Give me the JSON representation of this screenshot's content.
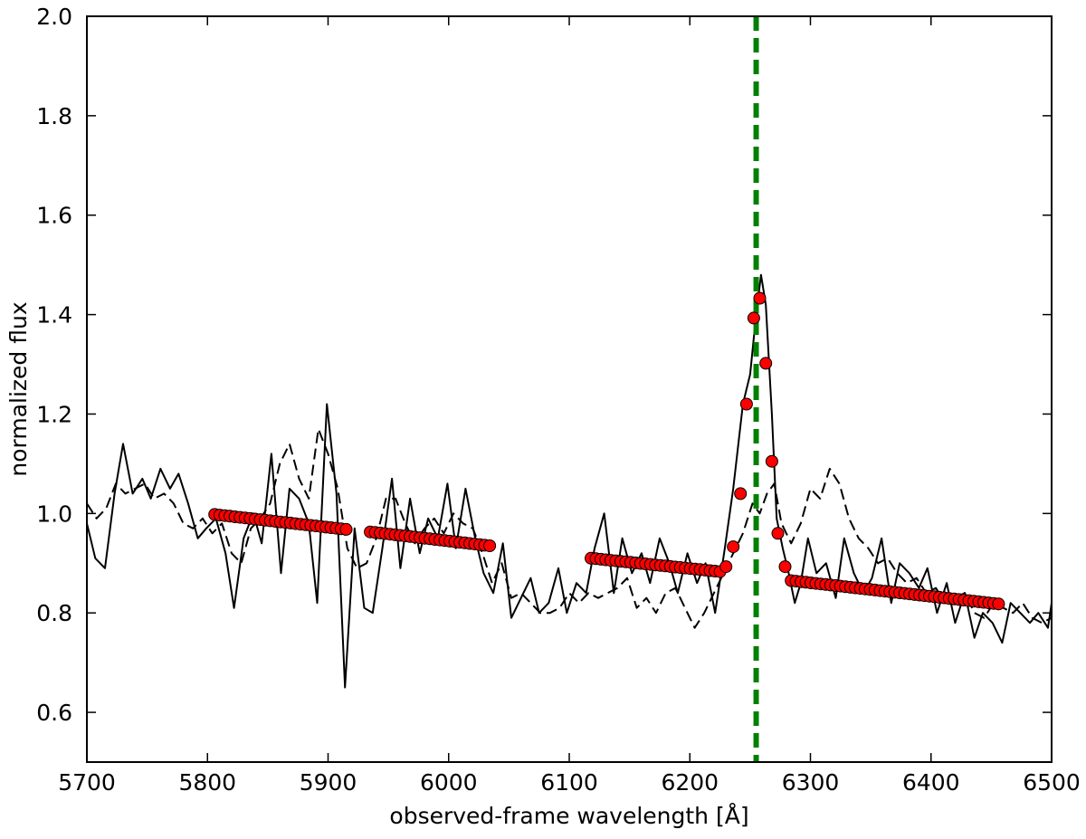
{
  "chart_data": {
    "type": "line",
    "title": "",
    "xlabel": "observed-frame wavelength [Å]",
    "ylabel": "normalized flux",
    "xlim": [
      5700,
      6500
    ],
    "ylim": [
      0.5,
      2.0
    ],
    "x_ticks": [
      5700,
      5800,
      5900,
      6000,
      6100,
      6200,
      6300,
      6400,
      6500
    ],
    "y_ticks": [
      0.6,
      0.8,
      1.0,
      1.2,
      1.4,
      1.6,
      1.8,
      2.0
    ],
    "grid": false,
    "legend": "none",
    "vertical_line": {
      "x": 6255,
      "color": "#008000",
      "style": "dashed"
    },
    "series": [
      {
        "style": "solid",
        "color": "#000000",
        "x": [
          5700,
          5707,
          5715,
          5723,
          5730,
          5738,
          5746,
          5753,
          5761,
          5769,
          5776,
          5784,
          5792,
          5799,
          5807,
          5815,
          5822,
          5830,
          5838,
          5845,
          5853,
          5861,
          5868,
          5876,
          5884,
          5891,
          5899,
          5907,
          5914,
          5922,
          5930,
          5937,
          5945,
          5953,
          5960,
          5968,
          5976,
          5983,
          5991,
          5999,
          6006,
          6014,
          6022,
          6029,
          6037,
          6045,
          6052,
          6060,
          6068,
          6075,
          6083,
          6091,
          6098,
          6106,
          6114,
          6121,
          6129,
          6137,
          6144,
          6152,
          6160,
          6167,
          6175,
          6183,
          6190,
          6198,
          6206,
          6213,
          6221,
          6229,
          6236,
          6244,
          6250,
          6255,
          6259,
          6263,
          6268,
          6272,
          6277,
          6282,
          6287,
          6292,
          6298,
          6305,
          6313,
          6321,
          6328,
          6336,
          6344,
          6351,
          6359,
          6367,
          6374,
          6382,
          6390,
          6397,
          6405,
          6413,
          6420,
          6428,
          6436,
          6443,
          6451,
          6459,
          6466,
          6474,
          6482,
          6489,
          6497,
          6500
        ],
        "y": [
          0.98,
          0.91,
          0.89,
          1.04,
          1.14,
          1.04,
          1.07,
          1.03,
          1.09,
          1.05,
          1.08,
          1.02,
          0.95,
          0.97,
          0.99,
          0.92,
          0.81,
          0.95,
          1.0,
          0.94,
          1.12,
          0.88,
          1.05,
          1.03,
          0.98,
          0.82,
          1.22,
          1.04,
          0.65,
          0.97,
          0.81,
          0.8,
          0.93,
          1.07,
          0.89,
          1.03,
          0.92,
          0.99,
          0.95,
          1.06,
          0.93,
          1.05,
          0.95,
          0.88,
          0.84,
          0.94,
          0.79,
          0.83,
          0.87,
          0.8,
          0.82,
          0.89,
          0.8,
          0.86,
          0.84,
          0.93,
          1.0,
          0.84,
          0.95,
          0.88,
          0.92,
          0.86,
          0.95,
          0.9,
          0.84,
          0.92,
          0.86,
          0.9,
          0.8,
          0.93,
          1.05,
          1.22,
          1.28,
          1.4,
          1.48,
          1.42,
          1.2,
          0.99,
          0.93,
          0.88,
          0.82,
          0.86,
          0.95,
          0.88,
          0.9,
          0.83,
          0.95,
          0.88,
          0.84,
          0.87,
          0.95,
          0.82,
          0.9,
          0.88,
          0.85,
          0.89,
          0.8,
          0.86,
          0.78,
          0.84,
          0.75,
          0.8,
          0.78,
          0.74,
          0.82,
          0.8,
          0.78,
          0.8,
          0.77,
          0.82
        ]
      },
      {
        "style": "dashed",
        "color": "#000000",
        "x": [
          5700,
          5708,
          5716,
          5724,
          5732,
          5740,
          5748,
          5756,
          5764,
          5772,
          5780,
          5788,
          5796,
          5804,
          5812,
          5820,
          5828,
          5836,
          5844,
          5852,
          5860,
          5868,
          5876,
          5884,
          5892,
          5900,
          5908,
          5916,
          5924,
          5932,
          5940,
          5948,
          5956,
          5964,
          5972,
          5980,
          5988,
          5996,
          6004,
          6012,
          6020,
          6028,
          6036,
          6044,
          6052,
          6060,
          6068,
          6076,
          6084,
          6092,
          6100,
          6108,
          6116,
          6124,
          6132,
          6140,
          6148,
          6156,
          6164,
          6172,
          6180,
          6188,
          6196,
          6204,
          6212,
          6220,
          6228,
          6236,
          6244,
          6252,
          6258,
          6264,
          6270,
          6276,
          6284,
          6292,
          6300,
          6308,
          6316,
          6324,
          6332,
          6340,
          6348,
          6356,
          6364,
          6372,
          6380,
          6388,
          6396,
          6404,
          6412,
          6420,
          6428,
          6436,
          6444,
          6452,
          6460,
          6468,
          6476,
          6484,
          6492,
          6500
        ],
        "y": [
          1.02,
          0.99,
          1.01,
          1.06,
          1.04,
          1.05,
          1.06,
          1.03,
          1.04,
          1.02,
          0.98,
          0.97,
          0.99,
          0.96,
          0.98,
          0.92,
          0.9,
          0.97,
          0.99,
          1.02,
          1.1,
          1.14,
          1.07,
          1.03,
          1.17,
          1.12,
          1.05,
          0.93,
          0.89,
          0.9,
          0.95,
          1.03,
          1.03,
          0.98,
          0.94,
          0.97,
          0.99,
          0.96,
          1.0,
          0.98,
          0.97,
          0.92,
          0.86,
          0.9,
          0.83,
          0.84,
          0.82,
          0.8,
          0.8,
          0.81,
          0.84,
          0.82,
          0.84,
          0.83,
          0.84,
          0.85,
          0.87,
          0.81,
          0.83,
          0.8,
          0.84,
          0.85,
          0.81,
          0.77,
          0.8,
          0.84,
          0.88,
          0.92,
          0.96,
          1.02,
          1.0,
          1.04,
          1.06,
          0.98,
          0.94,
          0.98,
          1.05,
          1.03,
          1.09,
          1.06,
          0.99,
          0.95,
          0.93,
          0.9,
          0.91,
          0.88,
          0.86,
          0.87,
          0.84,
          0.85,
          0.82,
          0.83,
          0.84,
          0.8,
          0.79,
          0.82,
          0.81,
          0.8,
          0.82,
          0.79,
          0.78,
          0.79
        ]
      }
    ],
    "fit_points": {
      "marker": "circle",
      "color": "#ff0000",
      "edge_color": "#000000",
      "segments": [
        {
          "x_start": 5806,
          "x_end": 5915,
          "y_start": 0.998,
          "y_end": 0.968,
          "count": 27
        },
        {
          "x_start": 5935,
          "x_end": 6034,
          "y_start": 0.963,
          "y_end": 0.935,
          "count": 25
        },
        {
          "x_start": 6118,
          "x_end": 6225,
          "y_start": 0.91,
          "y_end": 0.883,
          "count": 27
        },
        {
          "x_start": 6284,
          "x_end": 6456,
          "y_start": 0.865,
          "y_end": 0.818,
          "count": 43
        }
      ],
      "line_points": {
        "x": [
          6230,
          6236,
          6242,
          6247,
          6253,
          6258,
          6263,
          6268,
          6273,
          6279
        ],
        "y": [
          0.893,
          0.933,
          1.04,
          1.22,
          1.393,
          1.433,
          1.302,
          1.105,
          0.96,
          0.893
        ]
      }
    }
  }
}
